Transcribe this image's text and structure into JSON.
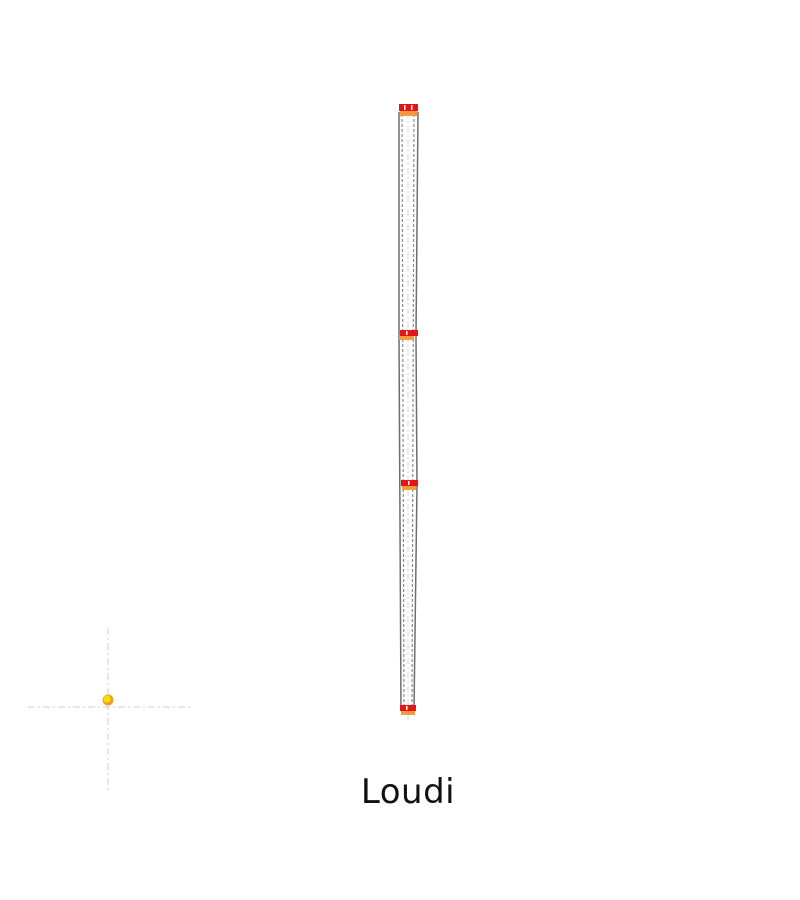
{
  "map": {
    "label": "Loudi",
    "colors": {
      "background": "#ffffff",
      "route_outline": "#6e6e6e",
      "route_inner_dash": "#b4b4b4",
      "station_red": "#e81414",
      "station_orange": "#f59a3c",
      "station_white_mark": "#ffffff",
      "guide_line": "#cfcfcf",
      "marker_yellow": "#f5e000",
      "marker_orange": "#f0a020"
    },
    "icons": {
      "station": "station-marker-icon",
      "location": "location-pin-icon"
    }
  }
}
